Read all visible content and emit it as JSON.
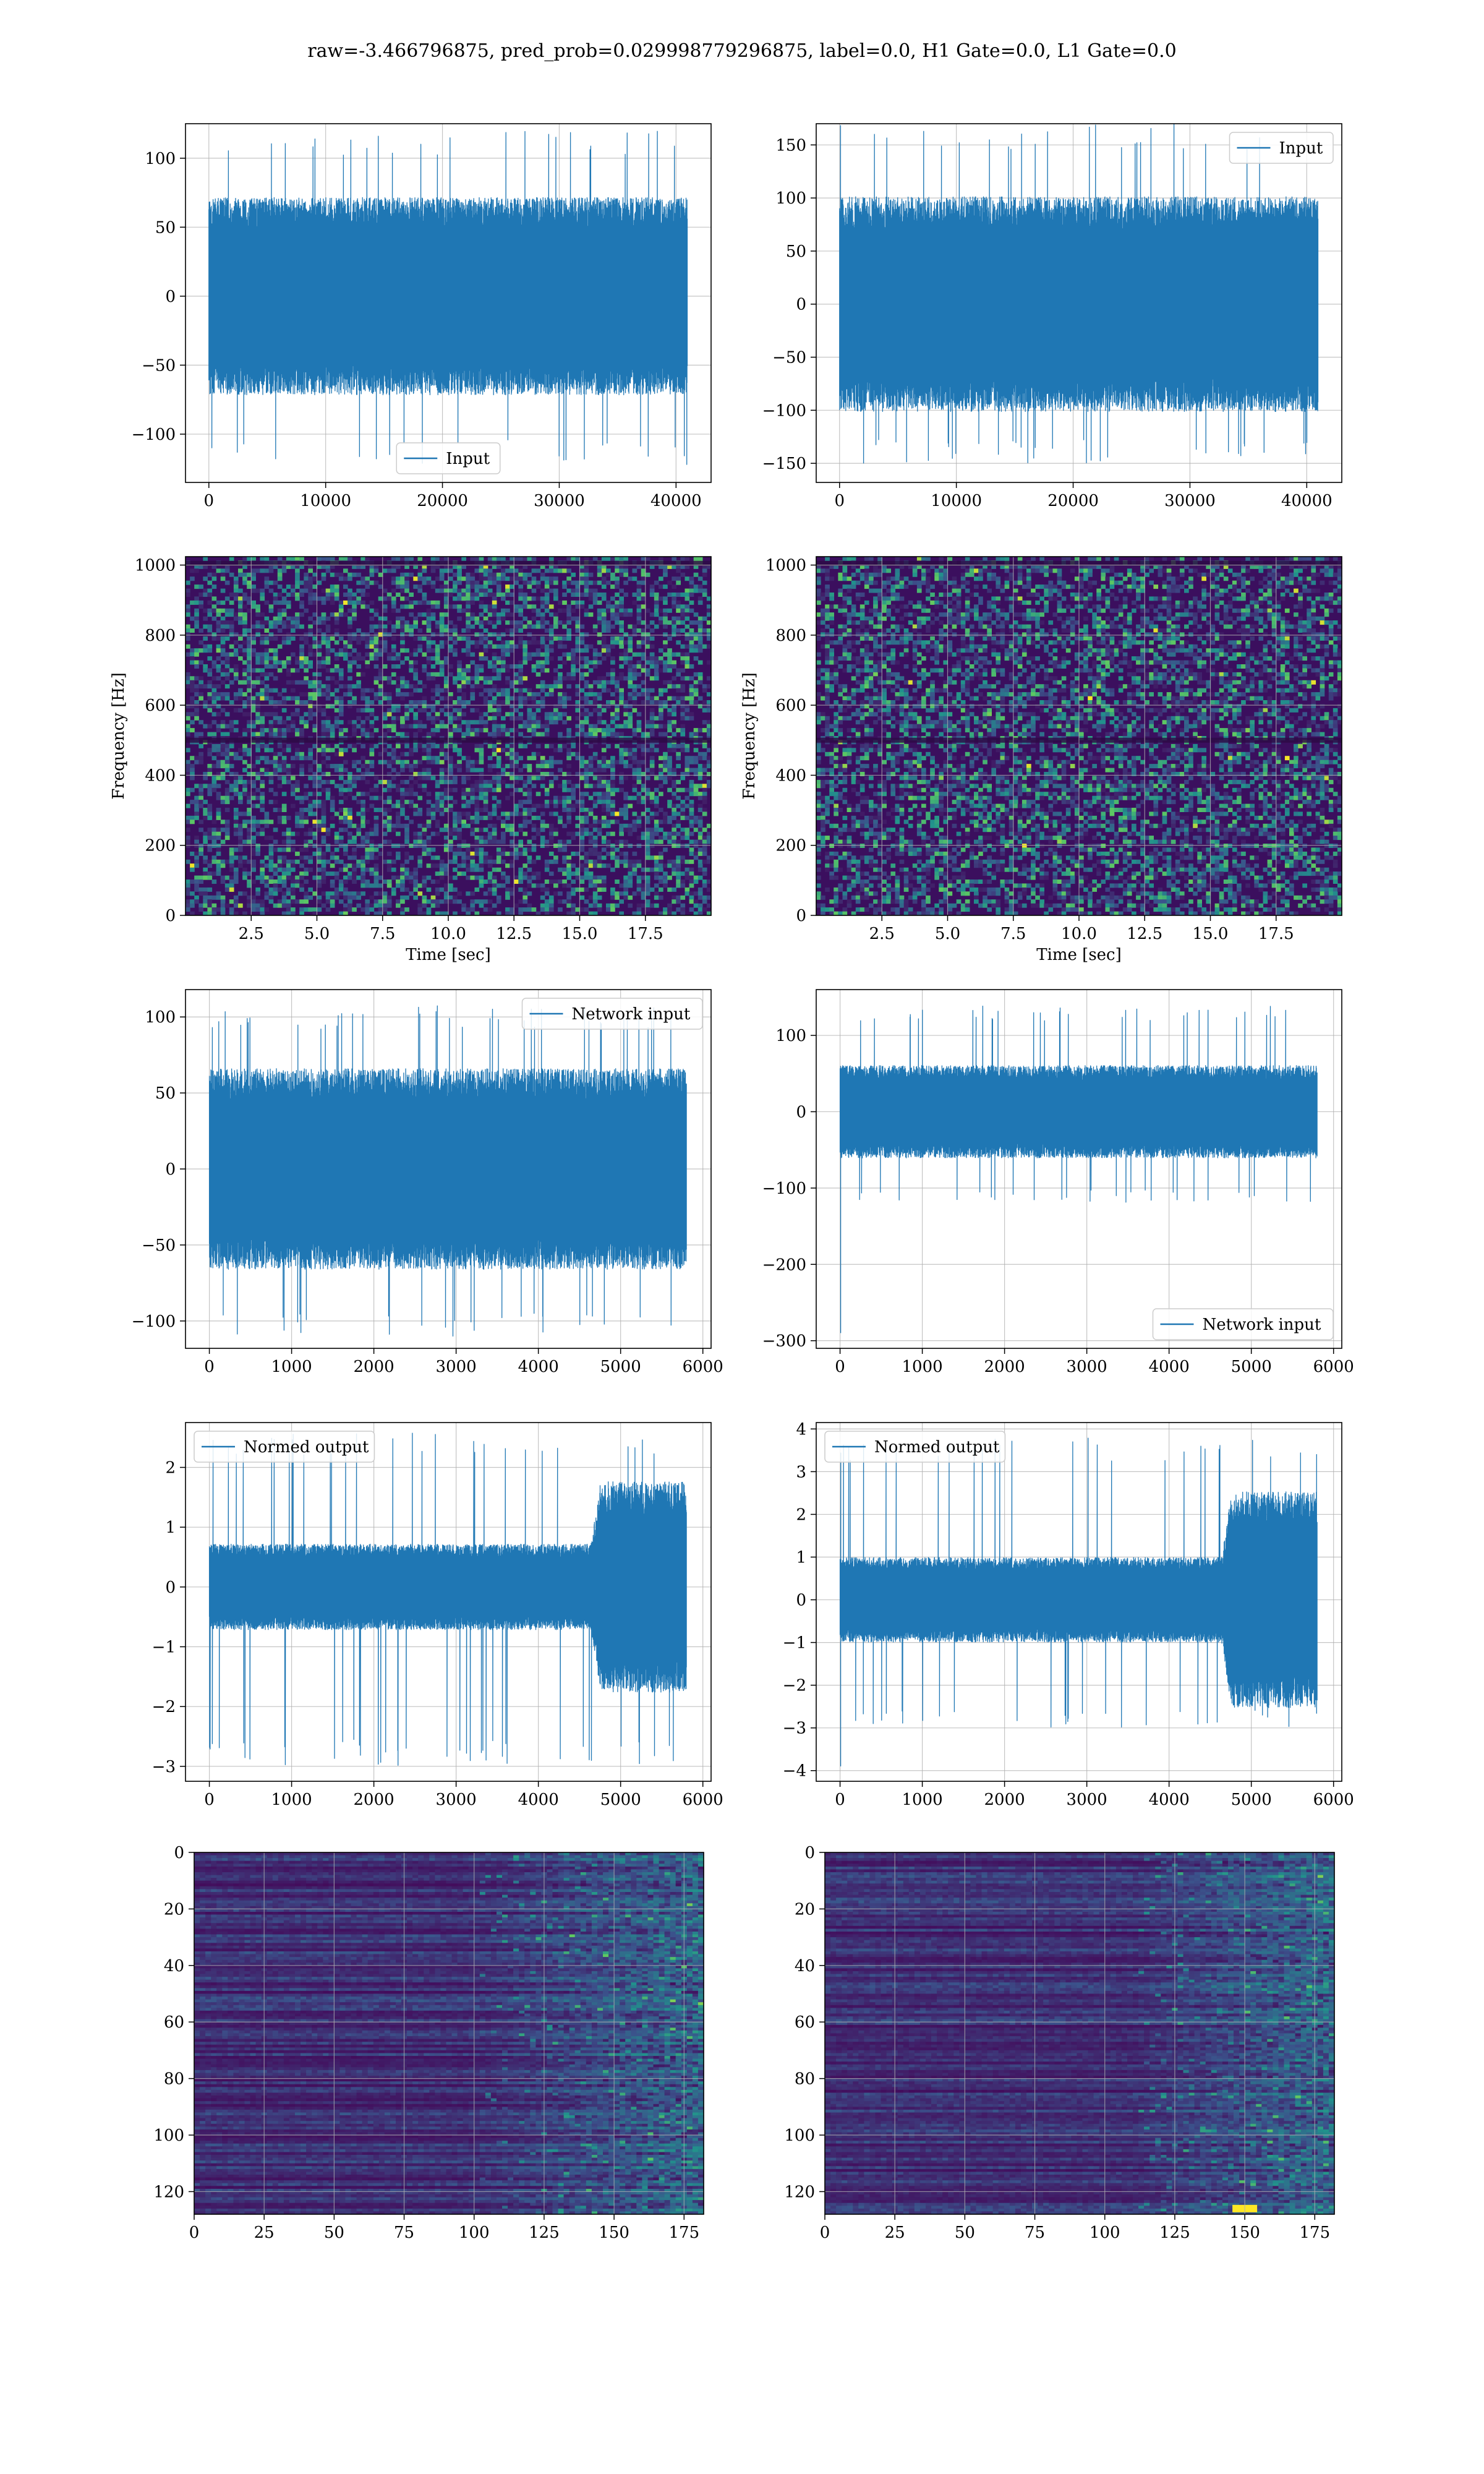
{
  "suptitle": "raw=-3.466796875, pred_prob=0.029998779296875, label=0.0, H1 Gate=0.0, L1 Gate=0.0",
  "colors": {
    "line": "#1f77b4",
    "grid": "#b0b0b0",
    "viridis": [
      "#440154",
      "#3b528b",
      "#21918c",
      "#5ec962",
      "#fde725"
    ],
    "spectrogram_background": "#3b0f5e"
  },
  "chart_data": [
    {
      "id": "input-h1",
      "type": "line",
      "legend": {
        "label": "Input",
        "loc": "lower center"
      },
      "xlim": [
        -2000,
        43000
      ],
      "ylim": [
        -135,
        125
      ],
      "xticks": [
        0,
        10000,
        20000,
        30000,
        40000
      ],
      "xtick_labels": [
        "0",
        "10000",
        "20000",
        "30000",
        "40000"
      ],
      "yticks": [
        -100,
        -50,
        0,
        50,
        100
      ],
      "ytick_labels": [
        "−100",
        "−50",
        "0",
        "50",
        "100"
      ],
      "signal": {
        "x_start": 0,
        "x_end": 40960,
        "envelope": [
          [
            0,
            65
          ],
          [
            1,
            65
          ]
        ],
        "spike_max": 120,
        "spike_min": -122,
        "edge_spike": null
      },
      "grid": true
    },
    {
      "id": "input-l1",
      "type": "line",
      "legend": {
        "label": "Input",
        "loc": "upper right"
      },
      "xlim": [
        -2000,
        43000
      ],
      "ylim": [
        -168,
        170
      ],
      "xticks": [
        0,
        10000,
        20000,
        30000,
        40000
      ],
      "xtick_labels": [
        "0",
        "10000",
        "20000",
        "30000",
        "40000"
      ],
      "yticks": [
        -150,
        -100,
        -50,
        0,
        50,
        100,
        150
      ],
      "ytick_labels": [
        "−150",
        "−100",
        "−50",
        "0",
        "50",
        "100",
        "150"
      ],
      "signal": {
        "x_start": 0,
        "x_end": 40960,
        "envelope": [
          [
            0,
            92
          ],
          [
            1,
            92
          ]
        ],
        "spike_max": 170,
        "spike_min": -150,
        "edge_spike": null
      },
      "grid": true
    },
    {
      "id": "spectrogram-h1",
      "type": "heatmap",
      "colormap": "viridis",
      "xlabel": "Time [sec]",
      "ylabel": "Frequency [Hz]",
      "xlim": [
        0,
        20
      ],
      "ylim": [
        0,
        1024
      ],
      "xticks": [
        2.5,
        5.0,
        7.5,
        10.0,
        12.5,
        15.0,
        17.5
      ],
      "xtick_labels": [
        "2.5",
        "5.0",
        "7.5",
        "10.0",
        "12.5",
        "15.0",
        "17.5"
      ],
      "yticks": [
        0,
        200,
        400,
        600,
        800,
        1000
      ],
      "ytick_labels": [
        "0",
        "200",
        "400",
        "600",
        "800",
        "1000"
      ],
      "horizontal_lines_hz": [
        500,
        1005
      ],
      "grid": true
    },
    {
      "id": "spectrogram-l1",
      "type": "heatmap",
      "colormap": "viridis",
      "xlabel": "Time [sec]",
      "ylabel": "Frequency [Hz]",
      "xlim": [
        0,
        20
      ],
      "ylim": [
        0,
        1024
      ],
      "xticks": [
        2.5,
        5.0,
        7.5,
        10.0,
        12.5,
        15.0,
        17.5
      ],
      "xtick_labels": [
        "2.5",
        "5.0",
        "7.5",
        "10.0",
        "12.5",
        "15.0",
        "17.5"
      ],
      "yticks": [
        0,
        200,
        400,
        600,
        800,
        1000
      ],
      "ytick_labels": [
        "0",
        "200",
        "400",
        "600",
        "800",
        "1000"
      ],
      "horizontal_lines_hz": [
        500,
        1005
      ],
      "grid": true
    },
    {
      "id": "network-input-h1",
      "type": "line",
      "legend": {
        "label": "Network input",
        "loc": "upper right"
      },
      "xlim": [
        -290,
        6100
      ],
      "ylim": [
        -118,
        118
      ],
      "xticks": [
        0,
        1000,
        2000,
        3000,
        4000,
        5000,
        6000
      ],
      "xtick_labels": [
        "0",
        "1000",
        "2000",
        "3000",
        "4000",
        "5000",
        "6000"
      ],
      "yticks": [
        -100,
        -50,
        0,
        50,
        100
      ],
      "ytick_labels": [
        "−100",
        "−50",
        "0",
        "50",
        "100"
      ],
      "signal": {
        "x_start": 0,
        "x_end": 5800,
        "envelope": [
          [
            0,
            60
          ],
          [
            1,
            60
          ]
        ],
        "spike_max": 108,
        "spike_min": -110,
        "edge_spike": null
      },
      "grid": true
    },
    {
      "id": "network-input-l1",
      "type": "line",
      "legend": {
        "label": "Network input",
        "loc": "lower right"
      },
      "xlim": [
        -290,
        6100
      ],
      "ylim": [
        -310,
        160
      ],
      "xticks": [
        0,
        1000,
        2000,
        3000,
        4000,
        5000,
        6000
      ],
      "xtick_labels": [
        "0",
        "1000",
        "2000",
        "3000",
        "4000",
        "5000",
        "6000"
      ],
      "yticks": [
        -300,
        -200,
        -100,
        0,
        100
      ],
      "ytick_labels": [
        "−300",
        "−200",
        "−100",
        "0",
        "100"
      ],
      "signal": {
        "x_start": 0,
        "x_end": 5800,
        "envelope": [
          [
            0,
            55
          ],
          [
            1,
            55
          ]
        ],
        "spike_max": 140,
        "spike_min": -120,
        "edge_spike": -290
      },
      "grid": true
    },
    {
      "id": "normed-output-h1",
      "type": "line",
      "legend": {
        "label": "Normed output",
        "loc": "upper left"
      },
      "xlim": [
        -290,
        6100
      ],
      "ylim": [
        -3.25,
        2.75
      ],
      "xticks": [
        0,
        1000,
        2000,
        3000,
        4000,
        5000,
        6000
      ],
      "xtick_labels": [
        "0",
        "1000",
        "2000",
        "3000",
        "4000",
        "5000",
        "6000"
      ],
      "yticks": [
        -3,
        -2,
        -1,
        0,
        1,
        2
      ],
      "ytick_labels": [
        "−3",
        "−2",
        "−1",
        "0",
        "1",
        "2"
      ],
      "signal": {
        "x_start": 0,
        "x_end": 5800,
        "envelope": [
          [
            0,
            0.65
          ],
          [
            0.8,
            0.65
          ],
          [
            0.82,
            1.6
          ],
          [
            1,
            1.6
          ]
        ],
        "spike_max": 2.6,
        "spike_min": -3.0,
        "edge_spike": null
      },
      "grid": true
    },
    {
      "id": "normed-output-l1",
      "type": "line",
      "legend": {
        "label": "Normed output",
        "loc": "upper left"
      },
      "xlim": [
        -290,
        6100
      ],
      "ylim": [
        -4.25,
        4.15
      ],
      "xticks": [
        0,
        1000,
        2000,
        3000,
        4000,
        5000,
        6000
      ],
      "xtick_labels": [
        "0",
        "1000",
        "2000",
        "3000",
        "4000",
        "5000",
        "6000"
      ],
      "yticks": [
        -4,
        -3,
        -2,
        -1,
        0,
        1,
        2,
        3,
        4
      ],
      "ytick_labels": [
        "−4",
        "−3",
        "−2",
        "−1",
        "0",
        "1",
        "2",
        "3",
        "4"
      ],
      "signal": {
        "x_start": 0,
        "x_end": 5800,
        "envelope": [
          [
            0,
            0.9
          ],
          [
            0.8,
            0.9
          ],
          [
            0.82,
            2.3
          ],
          [
            1,
            2.3
          ]
        ],
        "spike_max": 3.8,
        "spike_min": -3.0,
        "edge_spike": -3.9
      },
      "grid": true
    },
    {
      "id": "feature-map-h1",
      "type": "heatmap",
      "colormap": "viridis",
      "xlim": [
        0,
        182
      ],
      "ylim": [
        128,
        0
      ],
      "xticks": [
        0,
        25,
        50,
        75,
        100,
        125,
        150,
        175
      ],
      "xtick_labels": [
        "0",
        "25",
        "50",
        "75",
        "100",
        "125",
        "150",
        "175"
      ],
      "yticks": [
        0,
        20,
        40,
        60,
        80,
        100,
        120
      ],
      "ytick_labels": [
        "0",
        "20",
        "40",
        "60",
        "80",
        "100",
        "120"
      ],
      "rows": 128,
      "cols": 182,
      "active_from_col": 100,
      "hot_spot": null,
      "grid": true
    },
    {
      "id": "feature-map-l1",
      "type": "heatmap",
      "colormap": "viridis",
      "xlim": [
        0,
        182
      ],
      "ylim": [
        128,
        0
      ],
      "xticks": [
        0,
        25,
        50,
        75,
        100,
        125,
        150,
        175
      ],
      "xtick_labels": [
        "0",
        "25",
        "50",
        "75",
        "100",
        "125",
        "150",
        "175"
      ],
      "yticks": [
        0,
        20,
        40,
        60,
        80,
        100,
        120
      ],
      "ytick_labels": [
        "0",
        "20",
        "40",
        "60",
        "80",
        "100",
        "120"
      ],
      "rows": 128,
      "cols": 182,
      "active_from_col": 110,
      "hot_spot": [
        150,
        126
      ],
      "grid": true
    }
  ]
}
